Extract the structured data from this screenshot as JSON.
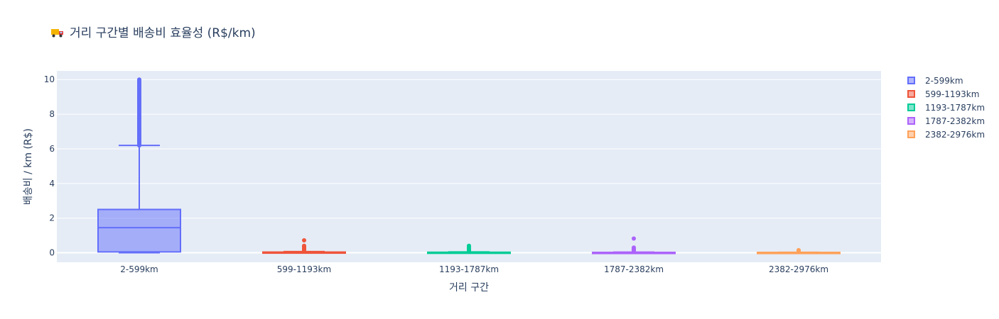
{
  "title": "거리 구간별 배송비 효율성 (R$/km)",
  "title_icon": "truck-icon",
  "chart_data": {
    "type": "box",
    "xlabel": "거리 구간",
    "ylabel": "배송비 / km (R$)",
    "ylim": [
      -0.55,
      10.5
    ],
    "yticks": [
      0,
      2,
      4,
      6,
      8,
      10
    ],
    "grid": true,
    "legend_position": "right",
    "categories": [
      "2-599km",
      "599-1193km",
      "1193-1787km",
      "1787-2382km",
      "2382-2976km"
    ],
    "series": [
      {
        "name": "2-599km",
        "color": "#636efa",
        "min": 0.0,
        "q1": 0.05,
        "median": 1.45,
        "q3": 2.5,
        "upper_fence": 6.2,
        "outliers_range": [
          6.2,
          10.0
        ]
      },
      {
        "name": "599-1193km",
        "color": "#ef553b",
        "min": 0.0,
        "q1": 0.01,
        "median": 0.02,
        "q3": 0.04,
        "upper_fence": 0.07,
        "outliers": [
          0.1,
          0.15,
          0.2,
          0.25,
          0.3,
          0.35,
          0.4,
          0.72
        ]
      },
      {
        "name": "1193-1787km",
        "color": "#00cc96",
        "min": 0.0,
        "q1": 0.01,
        "median": 0.02,
        "q3": 0.03,
        "upper_fence": 0.05,
        "outliers": [
          0.08,
          0.12,
          0.18,
          0.25,
          0.32,
          0.4
        ]
      },
      {
        "name": "1787-2382km",
        "color": "#ab63fa",
        "min": 0.0,
        "q1": 0.01,
        "median": 0.015,
        "q3": 0.02,
        "upper_fence": 0.04,
        "outliers": [
          0.06,
          0.1,
          0.15,
          0.2,
          0.25,
          0.3,
          0.82
        ]
      },
      {
        "name": "2382-2976km",
        "color": "#ffa15a",
        "min": 0.0,
        "q1": 0.01,
        "median": 0.015,
        "q3": 0.02,
        "upper_fence": 0.03,
        "outliers": [
          0.05,
          0.08,
          0.12,
          0.15
        ]
      }
    ]
  }
}
